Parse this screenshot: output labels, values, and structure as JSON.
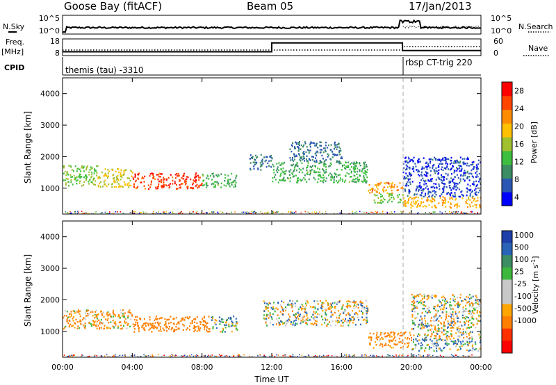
{
  "header": {
    "station": "Goose Bay (fitACF)",
    "beam": "Beam 05",
    "date": "17/Jan/2013"
  },
  "noise_panel": {
    "left_label": "N.Sky",
    "right_label": "N.Search",
    "ticks_left": [
      "10^5",
      "10^0"
    ],
    "ticks_right": [
      "10^5",
      "10^0"
    ]
  },
  "freq_panel": {
    "label_top": "Freq.",
    "label_bottom": "[MHz]",
    "ticks_left": [
      "18",
      "8"
    ],
    "ticks_right": [
      "60",
      "0"
    ],
    "right_label": "Nave"
  },
  "cpid_panel": {
    "label": "CPID",
    "segments": [
      {
        "label": "themis (tau) -3310",
        "start_hour": 0,
        "end_hour": 19.5
      },
      {
        "label": "rbsp CT-trig 220",
        "start_hour": 19.5,
        "end_hour": 24
      }
    ]
  },
  "x_axis": {
    "label": "Time UT",
    "ticks": [
      "00:00",
      "04:00",
      "08:00",
      "12:00",
      "16:00",
      "20:00",
      "00:00"
    ]
  },
  "power_panel": {
    "ylabel": "Slant Range [km]",
    "yticks": [
      "1000",
      "2000",
      "3000",
      "4000"
    ],
    "colorbar_label": "Power [dB]",
    "colorbar_ticks": [
      "4",
      "8",
      "12",
      "16",
      "20",
      "24",
      "28"
    ],
    "colors": [
      "#0000ff",
      "#2a57b4",
      "#3c8c64",
      "#3fbf3f",
      "#a0c030",
      "#ffc000",
      "#ff8c00",
      "#ff4500",
      "#ff0000"
    ]
  },
  "velocity_panel": {
    "ylabel": "Slant Range [km]",
    "yticks": [
      "1000",
      "2000",
      "3000",
      "4000"
    ],
    "colorbar_label": "Velocity [m s^-1]",
    "colorbar_ticks": [
      "1000",
      "500",
      "100",
      "25",
      "-25",
      "-100",
      "-500",
      "-1000"
    ],
    "colors": [
      "#1c3faa",
      "#2a64b8",
      "#3c8c64",
      "#3cb83c",
      "#c8c8c8",
      "#c8c8c8",
      "#ffa500",
      "#ff7f00",
      "#ff3000",
      "#ff0000"
    ]
  },
  "chart_data": [
    {
      "type": "line",
      "title": "Goose Bay (fitACF) Beam 05 17/Jan/2013",
      "xlabel": "Time UT",
      "ylabel": "Freq. [MHz]",
      "xlim": [
        0,
        24
      ],
      "ylim": [
        8,
        18
      ],
      "series": [
        {
          "name": "Freq.",
          "x": [
            0,
            12,
            12,
            19.5,
            19.5,
            24
          ],
          "y": [
            10.3,
            10.3,
            15.6,
            15.6,
            11.0,
            11.0
          ]
        }
      ]
    },
    {
      "type": "heatmap",
      "title": "Power [dB]",
      "xlabel": "Time UT",
      "ylabel": "Slant Range [km]",
      "xlim": [
        0,
        24
      ],
      "ylim": [
        180,
        4500
      ],
      "clim": [
        2,
        30
      ],
      "regions": [
        {
          "t0": 0.0,
          "t1": 2.0,
          "r0": 1100,
          "r1": 1750,
          "value": 14
        },
        {
          "t0": 2.0,
          "t1": 4.0,
          "r0": 1050,
          "r1": 1650,
          "value": 18
        },
        {
          "t0": 4.0,
          "t1": 8.0,
          "r0": 1000,
          "r1": 1500,
          "value": 26
        },
        {
          "t0": 8.0,
          "t1": 10.0,
          "r0": 1050,
          "r1": 1500,
          "value": 12
        },
        {
          "t0": 10.7,
          "t1": 12.0,
          "r0": 1600,
          "r1": 2100,
          "value": 8
        },
        {
          "t0": 12.0,
          "t1": 17.5,
          "r0": 1200,
          "r1": 1850,
          "value": 12
        },
        {
          "t0": 13.0,
          "t1": 16.0,
          "r0": 1850,
          "r1": 2500,
          "value": 8
        },
        {
          "t0": 17.5,
          "t1": 19.5,
          "r0": 850,
          "r1": 1200,
          "value": 22
        },
        {
          "t0": 17.8,
          "t1": 19.5,
          "r0": 550,
          "r1": 850,
          "value": 14
        },
        {
          "t0": 19.5,
          "t1": 24.0,
          "r0": 400,
          "r1": 750,
          "value": 20
        },
        {
          "t0": 19.5,
          "t1": 24.0,
          "r0": 750,
          "r1": 2000,
          "value": 6
        }
      ]
    },
    {
      "type": "heatmap",
      "title": "Velocity [m s^-1]",
      "xlabel": "Time UT",
      "ylabel": "Slant Range [km]",
      "xlim": [
        0,
        24
      ],
      "ylim": [
        180,
        4500
      ],
      "clim": [
        -1000,
        1000
      ],
      "regions": [
        {
          "t0": 0.0,
          "t1": 4.0,
          "r0": 1100,
          "r1": 1700,
          "value": -100
        },
        {
          "t0": 4.0,
          "t1": 8.5,
          "r0": 1000,
          "r1": 1500,
          "value": -300
        },
        {
          "t0": 8.5,
          "t1": 10.0,
          "r0": 1000,
          "r1": 1500,
          "value": 50
        },
        {
          "t0": 11.5,
          "t1": 17.5,
          "r0": 1200,
          "r1": 2000,
          "value": 0
        },
        {
          "t0": 17.5,
          "t1": 20.0,
          "r0": 500,
          "r1": 1000,
          "value": -200
        },
        {
          "t0": 20.0,
          "t1": 24.0,
          "r0": 400,
          "r1": 800,
          "value": 100
        },
        {
          "t0": 20.0,
          "t1": 24.0,
          "r0": 800,
          "r1": 2200,
          "value": 0
        }
      ]
    }
  ]
}
